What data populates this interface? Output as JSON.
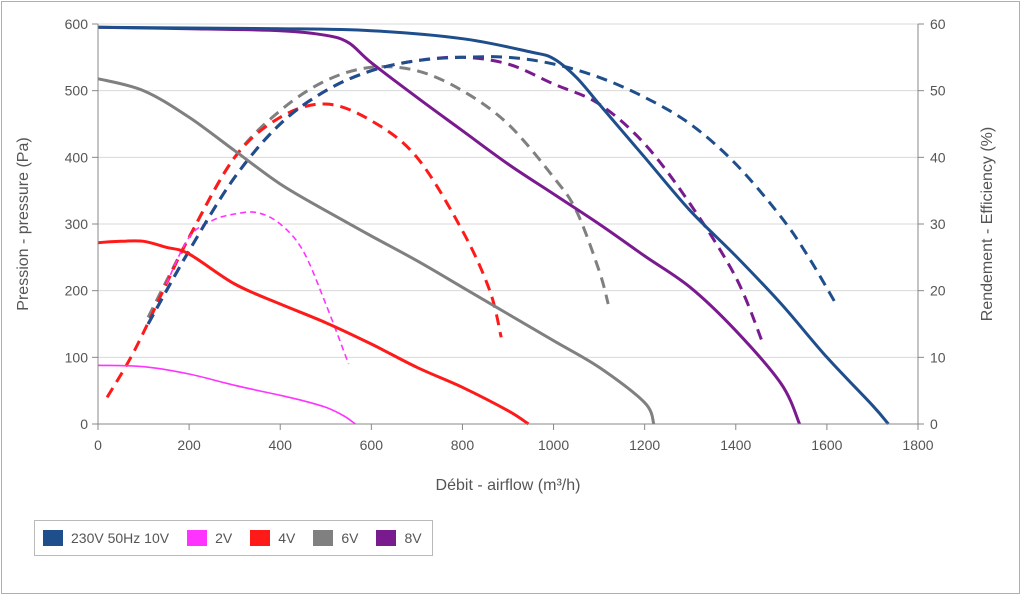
{
  "chart_data": {
    "type": "line",
    "title": "",
    "xlabel": "Débit - airflow (m³/h)",
    "ylabel": "Pression - pressure (Pa)",
    "ylabel_right": "Rendement - Efficiency (%)",
    "xlim": [
      0,
      1800
    ],
    "ylim": [
      0,
      600
    ],
    "ylim_right": [
      0,
      60
    ],
    "x_ticks": [
      "0",
      "200",
      "400",
      "600",
      "800",
      "1000",
      "1200",
      "1400",
      "1600",
      "1800"
    ],
    "y_ticks": [
      "0",
      "100",
      "200",
      "300",
      "400",
      "500",
      "600"
    ],
    "y_ticks_right": [
      "0",
      "10",
      "20",
      "30",
      "40",
      "50",
      "60"
    ],
    "grid": true,
    "legend_position": "bottom-left",
    "series": [
      {
        "name": "230V 50Hz 10V",
        "color": "#1f4e8c",
        "pressure": [
          [
            0,
            595
          ],
          [
            200,
            594
          ],
          [
            400,
            593
          ],
          [
            600,
            590
          ],
          [
            800,
            578
          ],
          [
            950,
            558
          ],
          [
            1000,
            548
          ],
          [
            1050,
            520
          ],
          [
            1100,
            480
          ],
          [
            1150,
            440
          ],
          [
            1200,
            400
          ],
          [
            1300,
            320
          ],
          [
            1400,
            252
          ],
          [
            1500,
            180
          ],
          [
            1600,
            100
          ],
          [
            1700,
            28
          ],
          [
            1735,
            0
          ]
        ],
        "efficiency": [
          [
            110,
            15
          ],
          [
            200,
            26
          ],
          [
            300,
            37
          ],
          [
            400,
            45
          ],
          [
            500,
            50
          ],
          [
            600,
            53
          ],
          [
            700,
            54.5
          ],
          [
            800,
            55
          ],
          [
            900,
            55
          ],
          [
            1000,
            54
          ],
          [
            1100,
            52
          ],
          [
            1200,
            49
          ],
          [
            1300,
            45
          ],
          [
            1400,
            39
          ],
          [
            1500,
            31
          ],
          [
            1560,
            25
          ],
          [
            1620,
            18
          ]
        ]
      },
      {
        "name": "2V",
        "color": "#ff33ff",
        "pressure": [
          [
            0,
            88
          ],
          [
            100,
            86
          ],
          [
            200,
            75
          ],
          [
            300,
            58
          ],
          [
            400,
            43
          ],
          [
            450,
            35
          ],
          [
            500,
            25
          ],
          [
            540,
            12
          ],
          [
            565,
            0
          ]
        ],
        "efficiency": [
          [
            150,
            21
          ],
          [
            200,
            28
          ],
          [
            250,
            30.5
          ],
          [
            300,
            31.5
          ],
          [
            350,
            31.7
          ],
          [
            400,
            30
          ],
          [
            450,
            26
          ],
          [
            500,
            18
          ],
          [
            550,
            9
          ]
        ]
      },
      {
        "name": "4V",
        "color": "#ff1a1a",
        "pressure": [
          [
            0,
            272
          ],
          [
            50,
            274
          ],
          [
            100,
            274
          ],
          [
            150,
            265
          ],
          [
            200,
            255
          ],
          [
            300,
            210
          ],
          [
            400,
            180
          ],
          [
            500,
            152
          ],
          [
            600,
            120
          ],
          [
            700,
            85
          ],
          [
            800,
            55
          ],
          [
            900,
            20
          ],
          [
            945,
            0
          ]
        ],
        "efficiency": [
          [
            20,
            4
          ],
          [
            80,
            11
          ],
          [
            150,
            21
          ],
          [
            200,
            28
          ],
          [
            300,
            40
          ],
          [
            400,
            46
          ],
          [
            500,
            48
          ],
          [
            600,
            45.5
          ],
          [
            700,
            40
          ],
          [
            800,
            29
          ],
          [
            860,
            20
          ],
          [
            885,
            13
          ]
        ]
      },
      {
        "name": "6V",
        "color": "#808080",
        "pressure": [
          [
            0,
            518
          ],
          [
            100,
            500
          ],
          [
            200,
            460
          ],
          [
            300,
            410
          ],
          [
            400,
            360
          ],
          [
            500,
            320
          ],
          [
            600,
            282
          ],
          [
            700,
            245
          ],
          [
            800,
            205
          ],
          [
            900,
            165
          ],
          [
            1000,
            125
          ],
          [
            1100,
            85
          ],
          [
            1200,
            32
          ],
          [
            1220,
            0
          ]
        ],
        "efficiency": [
          [
            110,
            16
          ],
          [
            200,
            28
          ],
          [
            300,
            40
          ],
          [
            400,
            47
          ],
          [
            500,
            51.5
          ],
          [
            600,
            53.5
          ],
          [
            700,
            53
          ],
          [
            800,
            50
          ],
          [
            900,
            45
          ],
          [
            1000,
            37
          ],
          [
            1050,
            32
          ],
          [
            1100,
            23
          ],
          [
            1120,
            18
          ]
        ]
      },
      {
        "name": "8V",
        "color": "#7a1a8f",
        "pressure": [
          [
            0,
            595
          ],
          [
            200,
            593
          ],
          [
            400,
            590
          ],
          [
            500,
            583
          ],
          [
            550,
            572
          ],
          [
            600,
            542
          ],
          [
            700,
            490
          ],
          [
            800,
            440
          ],
          [
            900,
            390
          ],
          [
            1000,
            345
          ],
          [
            1100,
            300
          ],
          [
            1200,
            252
          ],
          [
            1300,
            205
          ],
          [
            1400,
            140
          ],
          [
            1500,
            60
          ],
          [
            1540,
            0
          ]
        ],
        "efficiency": [
          [
            110,
            15
          ],
          [
            200,
            26
          ],
          [
            300,
            37
          ],
          [
            400,
            45
          ],
          [
            500,
            50
          ],
          [
            600,
            53
          ],
          [
            700,
            54.5
          ],
          [
            800,
            55
          ],
          [
            900,
            54
          ],
          [
            1000,
            51
          ],
          [
            1100,
            48
          ],
          [
            1200,
            42
          ],
          [
            1300,
            33
          ],
          [
            1400,
            22
          ],
          [
            1460,
            12
          ]
        ]
      }
    ]
  }
}
